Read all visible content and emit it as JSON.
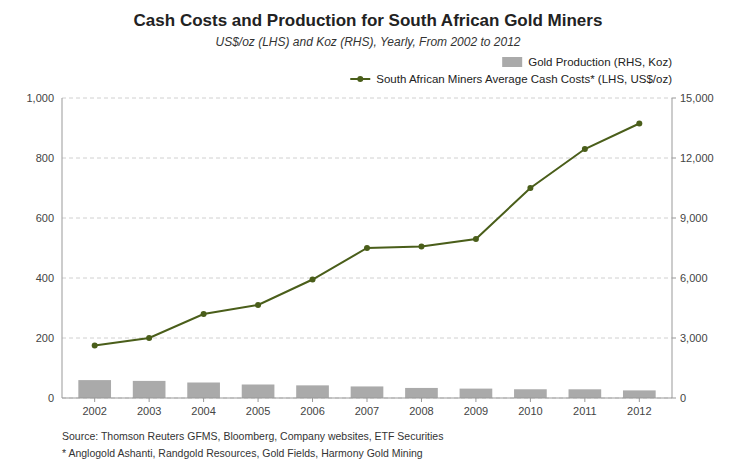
{
  "chart_data": {
    "type": "bar",
    "title": "Cash Costs and Production for South African Gold Miners",
    "subtitle": "US$/oz (LHS) and Koz (RHS), Yearly, From 2002 to 2012",
    "x": [
      2002,
      2003,
      2004,
      2005,
      2006,
      2007,
      2008,
      2009,
      2010,
      2011,
      2012
    ],
    "xlim": [
      2001.4,
      2012.6
    ],
    "xticks": [
      2002,
      2003,
      2004,
      2005,
      2006,
      2007,
      2008,
      2009,
      2010,
      2011,
      2012
    ],
    "series": [
      {
        "name": "Gold Production (RHS, Koz)",
        "type": "bar",
        "axis": "y2",
        "color": "#aaaaaa",
        "values": [
          895,
          855,
          775,
          675,
          632,
          578,
          503,
          470,
          437,
          435,
          380
        ]
      },
      {
        "name": "South African Miners Average Cash Costs* (LHS, US$/oz)",
        "type": "line",
        "color": "#4a5e1a",
        "marker": "circle",
        "values": [
          175,
          200,
          280,
          310,
          395,
          500,
          505,
          530,
          700,
          830,
          915
        ]
      }
    ],
    "ylim": [
      0,
      1000
    ],
    "yticks": [
      0,
      200,
      400,
      600,
      800,
      {
        "value": 1000,
        "label": "1,000"
      }
    ],
    "y2lim": [
      0,
      15000
    ],
    "y2ticks": [
      0,
      {
        "value": 3000,
        "label": "3,000"
      },
      {
        "value": 6000,
        "label": "6,000"
      },
      {
        "value": 9000,
        "label": "9,000"
      },
      {
        "value": 12000,
        "label": "12,000"
      },
      {
        "value": 15000,
        "label": "15,000"
      }
    ],
    "grid": true,
    "legend": "upper right",
    "annotations": [
      "Source: Thomson Reuters GFMS, Bloomberg, Company websites, ETF Securities",
      "* Anglogold Ashanti, Randgold Resources, Gold Fields, Harmony Gold Mining"
    ]
  }
}
